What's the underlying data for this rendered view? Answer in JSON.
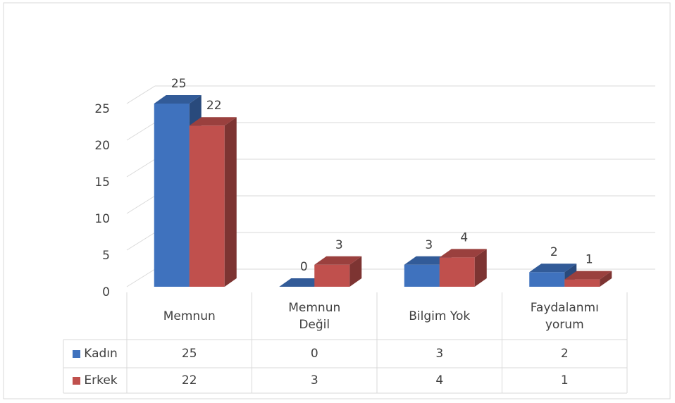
{
  "chart_data": {
    "type": "bar3d",
    "categories": [
      "Memnun",
      "Memnun Değil",
      "Bilgim Yok",
      "Faydalanmıyorum"
    ],
    "series": [
      {
        "name": "Kadın",
        "color": "#3f72be",
        "values": [
          25,
          0,
          3,
          2
        ]
      },
      {
        "name": "Erkek",
        "color": "#c0504d",
        "values": [
          22,
          3,
          4,
          1
        ]
      }
    ],
    "ylim": [
      0,
      25
    ],
    "yticks": [
      0,
      5,
      10,
      15,
      20,
      25
    ],
    "grid": true,
    "data_table": true
  }
}
